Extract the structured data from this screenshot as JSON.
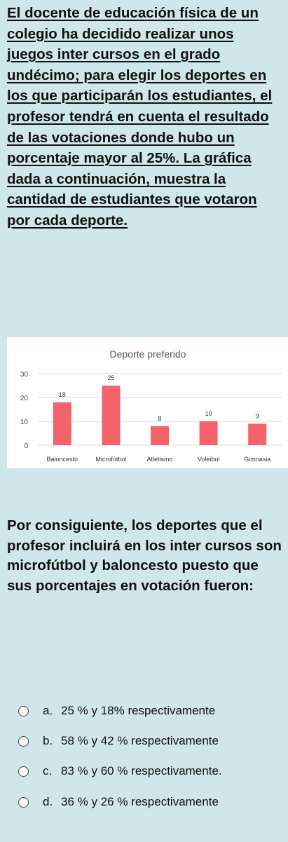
{
  "question": {
    "text": "El docente de educación física de un colegio ha decidido realizar unos juegos inter cursos en el grado undécimo; para elegir los deportes en los que participarán los estudiantes, el profesor tendrá en cuenta el resultado de las votaciones donde hubo un porcentaje mayor al 25%.  La gráfica dada a continuación, muestra la cantidad de estudiantes que votaron por cada deporte."
  },
  "chart_data": {
    "type": "bar",
    "title": "Deporte preferido",
    "categories": [
      "Baloncesto",
      "Microfútbol",
      "Atletismo",
      "Voleibol",
      "Gimnasia"
    ],
    "values": [
      18,
      25,
      8,
      10,
      9
    ],
    "data_labels": [
      "18",
      "25",
      "8",
      "10",
      "9"
    ],
    "ylim": [
      0,
      30
    ],
    "yticks": [
      "0",
      "10",
      "20",
      "30"
    ],
    "grid": true,
    "legend": "none",
    "bar_color": "#f4636b",
    "xlabel": "",
    "ylabel": ""
  },
  "conclusion": {
    "text": "Por consiguiente, los deportes que el profesor incluirá en los inter cursos son microfútbol y baloncesto puesto que sus porcentajes en votación fueron:"
  },
  "options": [
    {
      "letter": "a.",
      "text": "25 % y 18% respectivamente"
    },
    {
      "letter": "b.",
      "text": "58 % y 42 % respectivamente"
    },
    {
      "letter": "c.",
      "text": "83 % y 60 % respectivamente."
    },
    {
      "letter": "d.",
      "text": "36 % y 26 % respectivamente"
    }
  ]
}
